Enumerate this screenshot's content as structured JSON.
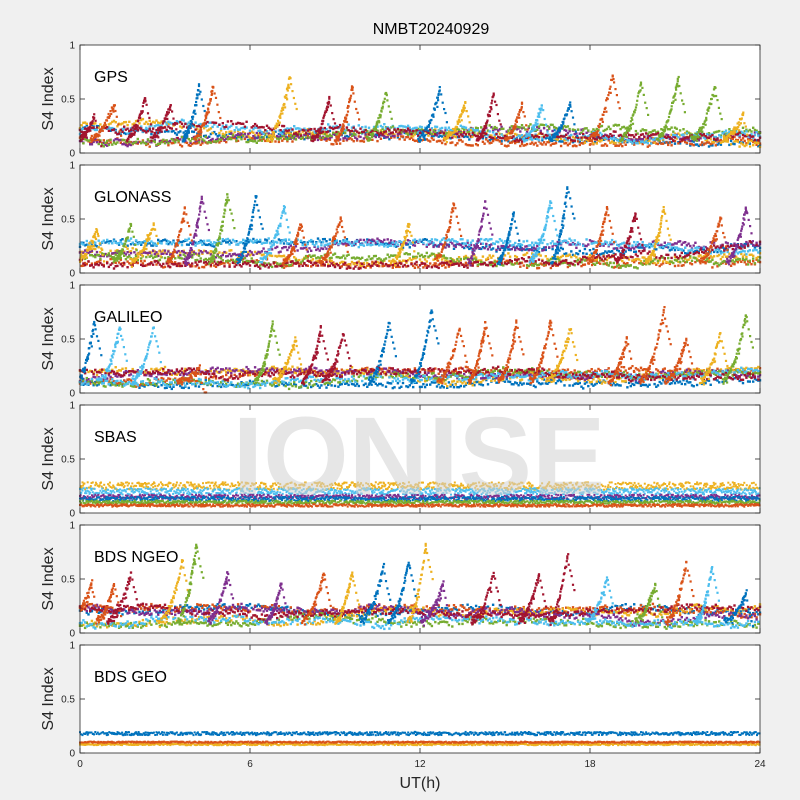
{
  "title": "NMBT20240929",
  "xlabel": "UT(h)",
  "ylabel": "S4 Index",
  "watermark": "IONISE",
  "colors": {
    "background": "#f0f0f0",
    "axes": "#ffffff",
    "series": [
      "#0072BD",
      "#D95319",
      "#EDB120",
      "#7E2F8E",
      "#77AC30",
      "#4DBEEE",
      "#A2142F"
    ]
  },
  "chart_data": [
    {
      "type": "scatter",
      "label": "GPS",
      "ylim": [
        0,
        1
      ],
      "xlim": [
        0,
        24
      ],
      "xticks": [
        0,
        6,
        12,
        18,
        24
      ],
      "yticks": [
        0,
        0.5,
        1
      ],
      "baseline_range": [
        0.08,
        0.3
      ],
      "peaks": [
        {
          "x": 0.5,
          "y": 0.35,
          "c": 6
        },
        {
          "x": 1.2,
          "y": 0.45,
          "c": 1
        },
        {
          "x": 2.3,
          "y": 0.5,
          "c": 6
        },
        {
          "x": 3.2,
          "y": 0.45,
          "c": 6
        },
        {
          "x": 4.2,
          "y": 0.62,
          "c": 0
        },
        {
          "x": 4.7,
          "y": 0.62,
          "c": 1
        },
        {
          "x": 7.4,
          "y": 0.7,
          "c": 2
        },
        {
          "x": 8.8,
          "y": 0.5,
          "c": 6
        },
        {
          "x": 9.6,
          "y": 0.6,
          "c": 1
        },
        {
          "x": 10.8,
          "y": 0.55,
          "c": 4
        },
        {
          "x": 12.7,
          "y": 0.6,
          "c": 0
        },
        {
          "x": 13.6,
          "y": 0.45,
          "c": 2
        },
        {
          "x": 14.6,
          "y": 0.55,
          "c": 6
        },
        {
          "x": 15.6,
          "y": 0.45,
          "c": 1
        },
        {
          "x": 16.3,
          "y": 0.45,
          "c": 5
        },
        {
          "x": 17.3,
          "y": 0.45,
          "c": 0
        },
        {
          "x": 18.8,
          "y": 0.72,
          "c": 1
        },
        {
          "x": 19.8,
          "y": 0.65,
          "c": 4
        },
        {
          "x": 21.1,
          "y": 0.68,
          "c": 4
        },
        {
          "x": 22.4,
          "y": 0.6,
          "c": 4
        },
        {
          "x": 23.4,
          "y": 0.35,
          "c": 2
        }
      ]
    },
    {
      "type": "scatter",
      "label": "GLONASS",
      "ylim": [
        0,
        1
      ],
      "xlim": [
        0,
        24
      ],
      "xticks": [
        0,
        6,
        12,
        18,
        24
      ],
      "yticks": [
        0,
        0.5,
        1
      ],
      "baseline_range": [
        0.06,
        0.3
      ],
      "peaks": [
        {
          "x": 0.6,
          "y": 0.4,
          "c": 2
        },
        {
          "x": 1.8,
          "y": 0.45,
          "c": 4
        },
        {
          "x": 2.6,
          "y": 0.45,
          "c": 2
        },
        {
          "x": 3.7,
          "y": 0.6,
          "c": 1
        },
        {
          "x": 4.3,
          "y": 0.7,
          "c": 3
        },
        {
          "x": 5.2,
          "y": 0.72,
          "c": 4
        },
        {
          "x": 6.2,
          "y": 0.7,
          "c": 0
        },
        {
          "x": 7.2,
          "y": 0.6,
          "c": 5
        },
        {
          "x": 7.8,
          "y": 0.45,
          "c": 1
        },
        {
          "x": 9.2,
          "y": 0.5,
          "c": 1
        },
        {
          "x": 11.6,
          "y": 0.45,
          "c": 2
        },
        {
          "x": 13.2,
          "y": 0.65,
          "c": 1
        },
        {
          "x": 14.3,
          "y": 0.65,
          "c": 3
        },
        {
          "x": 15.3,
          "y": 0.55,
          "c": 0
        },
        {
          "x": 16.6,
          "y": 0.65,
          "c": 5
        },
        {
          "x": 17.2,
          "y": 0.8,
          "c": 0
        },
        {
          "x": 18.6,
          "y": 0.6,
          "c": 1
        },
        {
          "x": 19.6,
          "y": 0.55,
          "c": 6
        },
        {
          "x": 20.6,
          "y": 0.6,
          "c": 2
        },
        {
          "x": 22.6,
          "y": 0.5,
          "c": 1
        },
        {
          "x": 23.5,
          "y": 0.6,
          "c": 3
        }
      ]
    },
    {
      "type": "scatter",
      "label": "GALILEO",
      "ylim": [
        0,
        1
      ],
      "xlim": [
        0,
        24
      ],
      "xticks": [
        0,
        6,
        12,
        18,
        24
      ],
      "yticks": [
        0,
        0.5,
        1
      ],
      "baseline_range": [
        0.06,
        0.22
      ],
      "peaks": [
        {
          "x": 0.5,
          "y": 0.65,
          "c": 0
        },
        {
          "x": 1.4,
          "y": 0.6,
          "c": 5
        },
        {
          "x": 2.6,
          "y": 0.6,
          "c": 5
        },
        {
          "x": 4.2,
          "y": 0.22,
          "c": 1
        },
        {
          "x": 6.8,
          "y": 0.65,
          "c": 4
        },
        {
          "x": 7.6,
          "y": 0.5,
          "c": 2
        },
        {
          "x": 8.5,
          "y": 0.6,
          "c": 6
        },
        {
          "x": 9.3,
          "y": 0.55,
          "c": 6
        },
        {
          "x": 10.9,
          "y": 0.65,
          "c": 0
        },
        {
          "x": 12.4,
          "y": 0.75,
          "c": 0
        },
        {
          "x": 13.4,
          "y": 0.6,
          "c": 1
        },
        {
          "x": 14.3,
          "y": 0.65,
          "c": 1
        },
        {
          "x": 15.4,
          "y": 0.65,
          "c": 1
        },
        {
          "x": 16.6,
          "y": 0.65,
          "c": 1
        },
        {
          "x": 17.3,
          "y": 0.6,
          "c": 2
        },
        {
          "x": 19.3,
          "y": 0.5,
          "c": 1
        },
        {
          "x": 20.6,
          "y": 0.75,
          "c": 1
        },
        {
          "x": 21.4,
          "y": 0.5,
          "c": 1
        },
        {
          "x": 22.6,
          "y": 0.55,
          "c": 2
        },
        {
          "x": 23.5,
          "y": 0.72,
          "c": 4
        }
      ]
    },
    {
      "type": "scatter",
      "label": "SBAS",
      "ylim": [
        0,
        1
      ],
      "xlim": [
        0,
        24
      ],
      "xticks": [
        0,
        6,
        12,
        18,
        24
      ],
      "yticks": [
        0,
        0.5,
        1
      ],
      "bands": [
        {
          "c": 2,
          "y": 0.25,
          "spread": 0.035
        },
        {
          "c": 5,
          "y": 0.2,
          "spread": 0.03
        },
        {
          "c": 3,
          "y": 0.15,
          "spread": 0.02
        },
        {
          "c": 0,
          "y": 0.13,
          "spread": 0.02
        },
        {
          "c": 4,
          "y": 0.1,
          "spread": 0.015
        },
        {
          "c": 1,
          "y": 0.07,
          "spread": 0.012
        }
      ]
    },
    {
      "type": "scatter",
      "label": "BDS NGEO",
      "ylim": [
        0,
        1
      ],
      "xlim": [
        0,
        24
      ],
      "xticks": [
        0,
        6,
        12,
        18,
        24
      ],
      "yticks": [
        0,
        0.5,
        1
      ],
      "baseline_range": [
        0.06,
        0.25
      ],
      "peaks": [
        {
          "x": 0.4,
          "y": 0.45,
          "c": 1
        },
        {
          "x": 1.2,
          "y": 0.45,
          "c": 1
        },
        {
          "x": 1.8,
          "y": 0.55,
          "c": 6
        },
        {
          "x": 3.6,
          "y": 0.65,
          "c": 2
        },
        {
          "x": 4.1,
          "y": 0.8,
          "c": 4
        },
        {
          "x": 5.2,
          "y": 0.55,
          "c": 3
        },
        {
          "x": 7.1,
          "y": 0.45,
          "c": 3
        },
        {
          "x": 8.6,
          "y": 0.55,
          "c": 1
        },
        {
          "x": 9.6,
          "y": 0.55,
          "c": 2
        },
        {
          "x": 10.7,
          "y": 0.6,
          "c": 0
        },
        {
          "x": 11.6,
          "y": 0.65,
          "c": 0
        },
        {
          "x": 12.2,
          "y": 0.8,
          "c": 2
        },
        {
          "x": 12.8,
          "y": 0.45,
          "c": 3
        },
        {
          "x": 14.6,
          "y": 0.55,
          "c": 6
        },
        {
          "x": 16.2,
          "y": 0.55,
          "c": 6
        },
        {
          "x": 17.2,
          "y": 0.7,
          "c": 6
        },
        {
          "x": 18.6,
          "y": 0.5,
          "c": 5
        },
        {
          "x": 20.3,
          "y": 0.45,
          "c": 4
        },
        {
          "x": 21.4,
          "y": 0.65,
          "c": 1
        },
        {
          "x": 22.3,
          "y": 0.6,
          "c": 5
        },
        {
          "x": 23.5,
          "y": 0.35,
          "c": 0
        }
      ]
    },
    {
      "type": "scatter",
      "label": "BDS GEO",
      "ylim": [
        0,
        1
      ],
      "xlim": [
        0,
        24
      ],
      "xticks": [
        0,
        6,
        12,
        18,
        24
      ],
      "yticks": [
        0,
        0.5,
        1
      ],
      "bands": [
        {
          "c": 0,
          "y": 0.18,
          "spread": 0.015
        },
        {
          "c": 2,
          "y": 0.08,
          "spread": 0.008
        },
        {
          "c": 1,
          "y": 0.1,
          "spread": 0.006
        }
      ]
    }
  ]
}
